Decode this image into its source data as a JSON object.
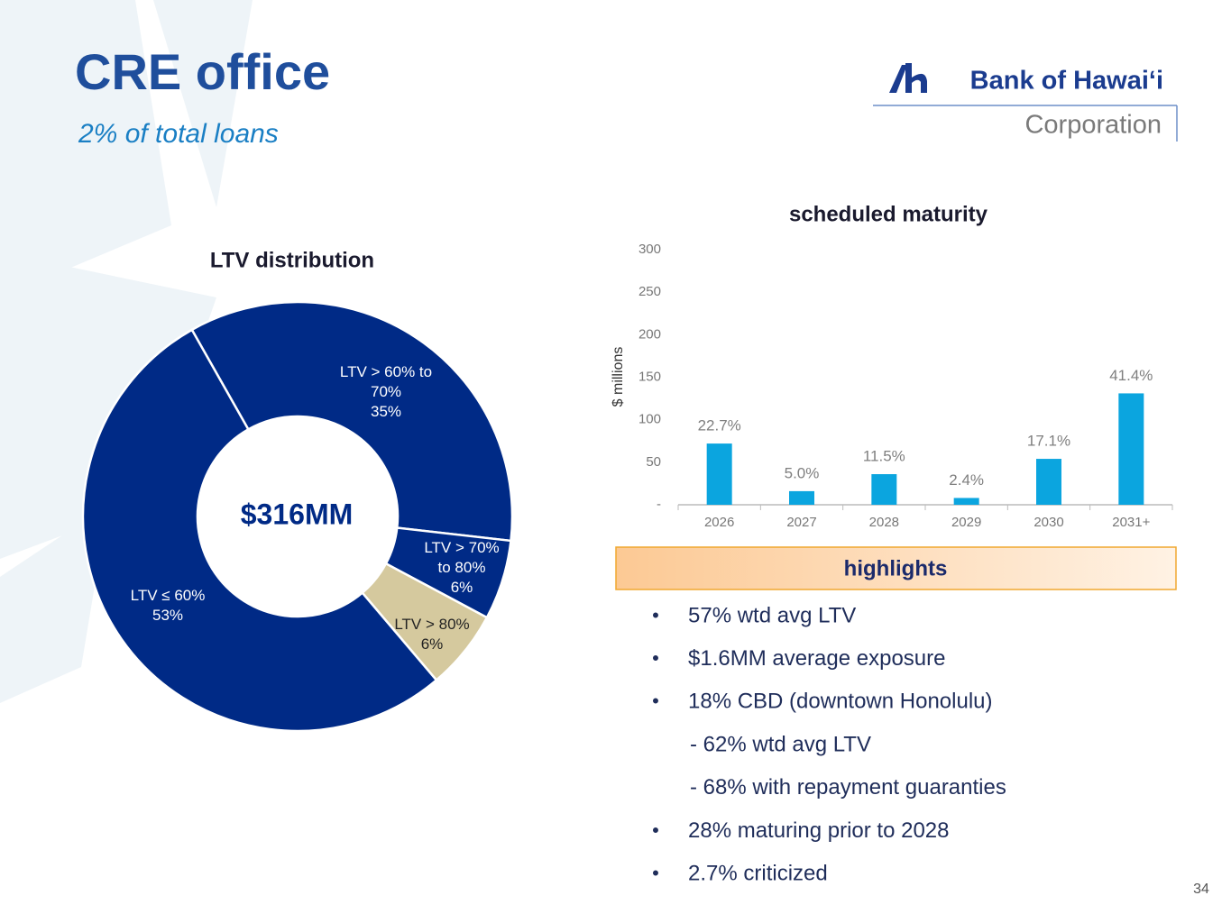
{
  "header": {
    "title": "CRE office",
    "subtitle": "2% of total loans"
  },
  "logo": {
    "name": "Bank of Hawaiʻi",
    "sub": "Corporation"
  },
  "chart_data": [
    {
      "type": "pie",
      "title": "LTV distribution",
      "center_label": "$316MM",
      "categories": [
        "LTV > 60% to 70%",
        "LTV > 70% to 80%",
        "LTV > 80%",
        "LTV ≤ 60%"
      ],
      "values": [
        35,
        6,
        6,
        53
      ],
      "value_labels": [
        "35%",
        "6%",
        "6%",
        "53%"
      ],
      "colors": [
        "#002a86",
        "#002a86",
        "#d5c99e",
        "#002a86"
      ]
    },
    {
      "type": "bar",
      "title": "scheduled maturity",
      "ylabel": "$ millions",
      "categories": [
        "2026",
        "2027",
        "2028",
        "2029",
        "2030",
        "2031+"
      ],
      "values": [
        72,
        16,
        36,
        8,
        54,
        131
      ],
      "data_labels": [
        "22.7%",
        "5.0%",
        "11.5%",
        "2.4%",
        "17.1%",
        "41.4%"
      ],
      "color": "#0ba5df",
      "ylim": [
        0,
        300
      ],
      "yticks": [
        {
          "value": 0,
          "label": "-"
        },
        50,
        100,
        150,
        200,
        250,
        300
      ]
    }
  ],
  "highlights": {
    "title": "highlights",
    "items": [
      "57% wtd avg LTV",
      "$1.6MM average exposure",
      "18% CBD (downtown Honolulu)",
      "-  62% wtd avg LTV",
      "-  68% with repayment guaranties",
      "28% maturing prior to 2028",
      "2.7% criticized"
    ],
    "bullets": [
      "•",
      "•",
      "•",
      null,
      null,
      "•",
      "•"
    ]
  },
  "page_number": "34"
}
